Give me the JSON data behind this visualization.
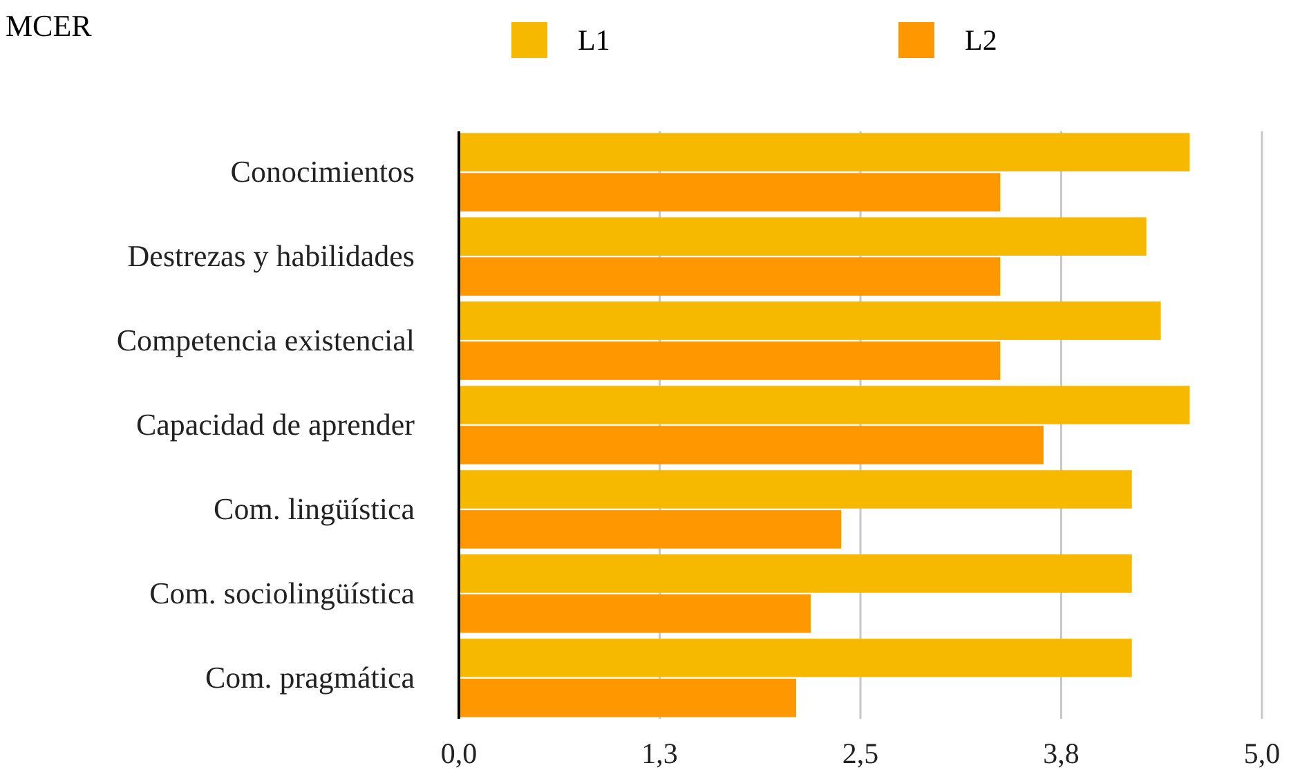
{
  "chart_data": {
    "type": "bar",
    "orientation": "horizontal",
    "title": "MCER",
    "categories": [
      "Conocimientos",
      "Destrezas y habilidades",
      "Competencia existencial",
      "Capacidad de aprender",
      "Com. lingüística",
      "Com. sociolingüística",
      "Com. pragmática"
    ],
    "series": [
      {
        "name": "L1",
        "color": "#f6b900",
        "values": [
          4.55,
          4.28,
          4.37,
          4.55,
          4.19,
          4.19,
          4.19
        ]
      },
      {
        "name": "L2",
        "color": "#ff9700",
        "values": [
          3.37,
          3.37,
          3.37,
          3.64,
          2.38,
          2.19,
          2.1
        ]
      }
    ],
    "xlim": [
      0,
      5
    ],
    "xticks": [
      {
        "value": 0,
        "label": "0,0"
      },
      {
        "value": 1.25,
        "label": "1,3"
      },
      {
        "value": 2.5,
        "label": "2,5"
      },
      {
        "value": 3.75,
        "label": "3,8"
      },
      {
        "value": 5,
        "label": "5,0"
      }
    ],
    "grid": "x",
    "legend": "top"
  }
}
